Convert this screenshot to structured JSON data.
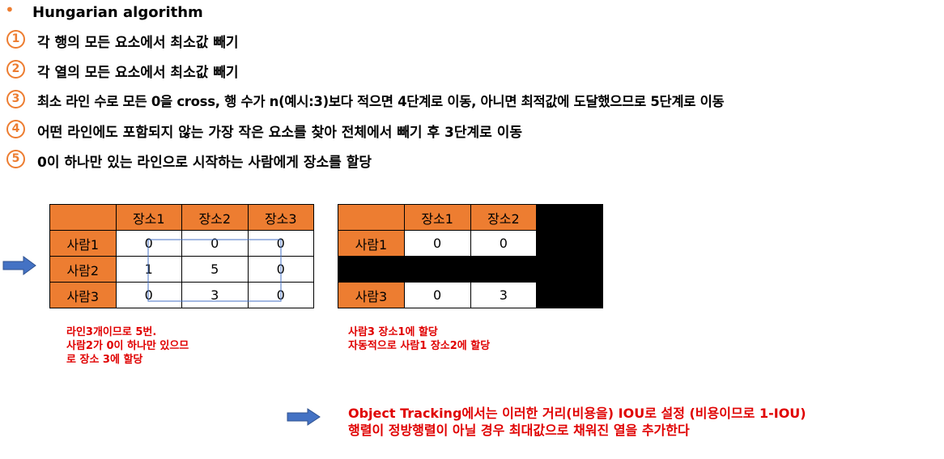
{
  "heading": {
    "bullet": "•",
    "title": "Hungarian algorithm"
  },
  "steps": [
    {
      "num": "1",
      "text": "각 행의 모든 요소에서 최소값 빼기"
    },
    {
      "num": "2",
      "text": "각 열의 모든 요소에서 최소값 빼기"
    },
    {
      "num": "3",
      "text": "최소 라인 수로 모든 0을 cross, 행 수가 n(예시:3)보다 적으면 4단계로 이동, 아니면 최적값에 도달했으므로 5단계로 이동"
    },
    {
      "num": "4",
      "text": "어떤 라인에도 포함되지 않는 가장 작은 요소를 찾아 전체에서 빼기 후 3단계로 이동"
    },
    {
      "num": "5",
      "text": "0이 하나만 있는 라인으로 시작하는 사람에게 장소를 할당"
    }
  ],
  "table1": {
    "cols": [
      "장소1",
      "장소2",
      "장소3"
    ],
    "rows": [
      {
        "label": "사람1",
        "cells": [
          "0",
          "0",
          "0"
        ]
      },
      {
        "label": "사람2",
        "cells": [
          "1",
          "5",
          "0"
        ]
      },
      {
        "label": "사람3",
        "cells": [
          "0",
          "3",
          "0"
        ]
      }
    ]
  },
  "table2": {
    "cols": [
      "장소1",
      "장소2"
    ],
    "rows": [
      {
        "label": "사람1",
        "cells": [
          "0",
          "0"
        ]
      },
      {
        "label": "사람3",
        "cells": [
          "0",
          "3"
        ]
      }
    ]
  },
  "notes": {
    "left": [
      "라인3개이므로 5번.",
      "사람2가 0이 하나만 있으므",
      "로 장소 3에 할당"
    ],
    "right": [
      "사람3 장소1에 할당",
      "자동적으로 사람1 장소2에 할당"
    ],
    "bottom": [
      "Object Tracking에서는 이러한 거리(비용을) IOU로 설정 (비용이므로 1-IOU)",
      "행렬이 정방행렬이 아닐 경우 최대값으로 채워진 열을 추가한다"
    ]
  },
  "colors": {
    "accent": "#ED7D31",
    "note": "#E00000",
    "arrow": "#4472C4",
    "line": "#4472C4"
  },
  "icons": {
    "arrow": "right-arrow-icon"
  }
}
